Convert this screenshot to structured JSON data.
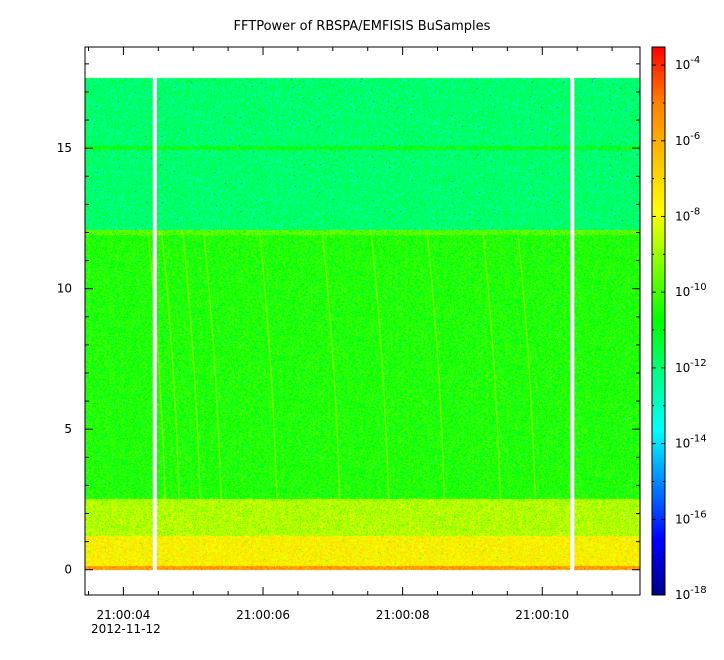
{
  "chart_data": {
    "type": "heatmap",
    "title": "FFTPower of RBSPA/EMFISIS  BuSamples",
    "xlabel": "",
    "ylabel": "",
    "x_range_seconds": [
      3.45,
      11.4
    ],
    "x_ticks": [
      {
        "label": "21:00:04",
        "sec": 4
      },
      {
        "label": "21:00:06",
        "sec": 6
      },
      {
        "label": "21:00:08",
        "sec": 8
      },
      {
        "label": "21:00:10",
        "sec": 10
      }
    ],
    "x_minor_ticks_sec": [
      3.5,
      4.5,
      5,
      5.5,
      6.5,
      7,
      7.5,
      8.5,
      9,
      9.5,
      10.5,
      11
    ],
    "date_label": "2012-11-12",
    "ylim": [
      -0.9,
      18.6
    ],
    "y_ticks": [
      0,
      5,
      10,
      15
    ],
    "y_minor_step": 1,
    "data_band": {
      "y_min": 0,
      "y_max": 17.5
    },
    "gaps_sec": [
      4.45,
      10.43
    ],
    "bands": [
      {
        "y_from": 0.0,
        "y_to": 0.12,
        "level": "red-orange"
      },
      {
        "y_from": 0.12,
        "y_to": 1.2,
        "level": "yellow"
      },
      {
        "y_from": 1.2,
        "y_to": 2.5,
        "level": "yellow-green"
      },
      {
        "y_from": 2.5,
        "y_to": 12.1,
        "level": "green"
      },
      {
        "y_from": 12.1,
        "y_to": 17.5,
        "level": "cyan-green"
      }
    ],
    "line_features": [
      {
        "y": 15.0,
        "note": "narrow band line"
      },
      {
        "y": 12.0,
        "note": "band edge"
      }
    ],
    "colorbar": {
      "scale": "log",
      "range": [
        "1e-18",
        "3e-4"
      ],
      "tick_labels": [
        {
          "base": "10",
          "exp": "-4"
        },
        {
          "base": "10",
          "exp": "-6"
        },
        {
          "base": "10",
          "exp": "-8"
        },
        {
          "base": "10",
          "exp": "-10"
        },
        {
          "base": "10",
          "exp": "-12"
        },
        {
          "base": "10",
          "exp": "-14"
        },
        {
          "base": "10",
          "exp": "-16"
        },
        {
          "base": "10",
          "exp": "-18"
        }
      ],
      "tick_exponents": [
        -4,
        -6,
        -8,
        -10,
        -12,
        -14,
        -16,
        -18
      ],
      "colors": [
        "#00008b",
        "#0000ff",
        "#0080ff",
        "#00ffff",
        "#00ff88",
        "#00ff00",
        "#7fff00",
        "#ffff00",
        "#ffc000",
        "#ff8000",
        "#ff0000"
      ]
    }
  }
}
